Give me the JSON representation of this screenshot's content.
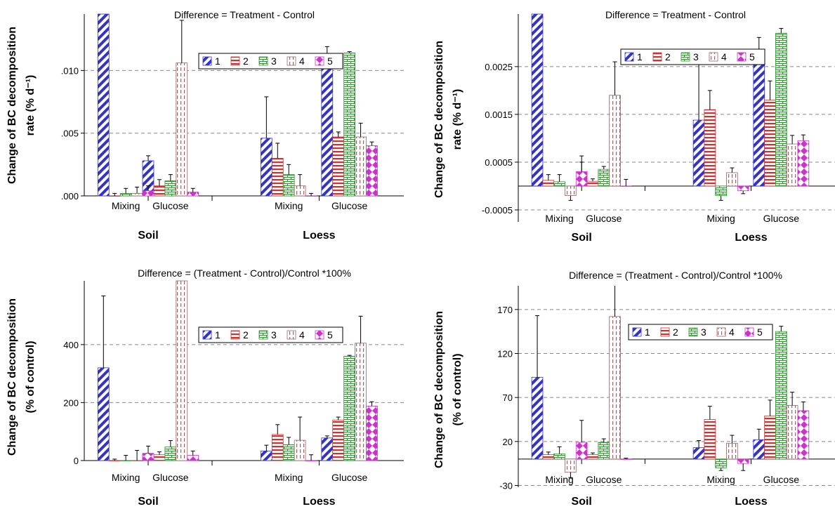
{
  "series_styles": [
    {
      "name": "1",
      "color": "#3333cc",
      "pattern": "diag"
    },
    {
      "name": "2",
      "color": "#cc3333",
      "pattern": "hlines"
    },
    {
      "name": "3",
      "color": "#339933",
      "pattern": "brick"
    },
    {
      "name": "4",
      "color": "#996666",
      "pattern": "vdash"
    },
    {
      "name": "5",
      "color": "#cc33cc",
      "pattern": "diamond"
    }
  ],
  "chart_data": [
    {
      "type": "bar",
      "title": "Difference = Treatment - Control",
      "ylabel_line1": "Change of BC decomposition",
      "ylabel_line2": "rate (% d⁻¹)",
      "ylim": [
        0,
        0.0145
      ],
      "yticks": [
        0,
        0.005,
        0.01
      ],
      "ytick_labels": [
        ".000",
        ".005",
        ".010"
      ],
      "gridlines": [
        0.005,
        0.01
      ],
      "legend_position": "top-right",
      "categories": [
        "Mixing",
        "Glucose",
        "Mixing",
        "Glucose"
      ],
      "groups": [
        "Soil",
        "Loess"
      ],
      "series": [
        {
          "name": "1",
          "values": [
            0.0145,
            0.0028,
            0.0046,
            0.0108
          ],
          "errors": [
            0.002,
            0.0004,
            0.0033,
            0.0011
          ]
        },
        {
          "name": "2",
          "values": [
            0.0,
            0.0008,
            0.003,
            0.0047
          ],
          "errors": [
            0.0002,
            0.0005,
            0.0012,
            0.0004
          ]
        },
        {
          "name": "3",
          "values": [
            0.0002,
            0.0012,
            0.0017,
            0.0114
          ],
          "errors": [
            0.0004,
            0.0005,
            0.0008,
            0.0001
          ]
        },
        {
          "name": "4",
          "values": [
            0.0002,
            0.0106,
            0.0008,
            0.0047
          ],
          "errors": [
            0.0005,
            0.0034,
            0.0009,
            0.0011
          ]
        },
        {
          "name": "5",
          "values": [
            0.0004,
            0.0003,
            0.0,
            0.004
          ],
          "errors": [
            0.0004,
            0.0003,
            0.0002,
            0.0003
          ]
        }
      ]
    },
    {
      "type": "bar",
      "title": "Difference = Treatment - Control",
      "ylabel_line1": "Change of BC decomposition",
      "ylabel_line2": "rate (% d⁻¹)",
      "ylim": [
        -0.00075,
        0.0036
      ],
      "yticks": [
        -0.0005,
        0.0005,
        0.0015,
        0.0025
      ],
      "ytick_labels": [
        "-0.0005",
        "0.0005",
        "0.0015",
        "0.0025"
      ],
      "gridlines": [
        -0.0005,
        0.0005,
        0.0015,
        0.0025
      ],
      "legend_position": "top-right",
      "categories": [
        "Mixing",
        "Glucose",
        "Mixing",
        "Glucose"
      ],
      "groups": [
        "Soil",
        "Loess"
      ],
      "series": [
        {
          "name": "1",
          "values": [
            0.0036,
            8e-05,
            0.00138,
            0.00266
          ],
          "errors": [
            0.0006,
            0.00042,
            0.00118,
            0.00045
          ]
        },
        {
          "name": "2",
          "values": [
            0.00012,
            0.0001,
            0.0016,
            0.0018
          ],
          "errors": [
            0.00012,
            5e-05,
            0.0004,
            0.0004
          ]
        },
        {
          "name": "3",
          "values": [
            9e-05,
            0.00035,
            -0.0002,
            0.0032
          ],
          "errors": [
            0.00015,
            6e-05,
            0.0001,
            0.0001
          ]
        },
        {
          "name": "4",
          "values": [
            -0.0002,
            0.0019,
            0.00028,
            0.00088
          ],
          "errors": [
            0.0001,
            0.0007,
            0.0001,
            0.00018
          ]
        },
        {
          "name": "5",
          "values": [
            0.0003,
            0.0,
            -0.0001,
            0.00095
          ],
          "errors": [
            0.00033,
            0.00014,
            6e-05,
            0.00012
          ]
        }
      ]
    },
    {
      "type": "bar",
      "title": "Difference = (Treatment - Control)/Control *100%",
      "ylabel_line1": "Change of BC decomposition",
      "ylabel_line2": "(% of control)",
      "ylim": [
        0,
        620
      ],
      "yticks": [
        0,
        200,
        400
      ],
      "ytick_labels": [
        "0",
        "200",
        "400"
      ],
      "gridlines": [
        200,
        400
      ],
      "legend_position": "top-right",
      "categories": [
        "Mixing",
        "Glucose",
        "Mixing",
        "Glucose"
      ],
      "groups": [
        "Soil",
        "Loess"
      ],
      "series": [
        {
          "name": "1",
          "values": [
            320,
            20,
            33,
            78
          ],
          "errors": [
            248,
            5,
            20,
            7
          ]
        },
        {
          "name": "2",
          "values": [
            0,
            20,
            90,
            140
          ],
          "errors": [
            5,
            10,
            34,
            10
          ]
        },
        {
          "name": "3",
          "values": [
            0,
            47,
            55,
            360
          ],
          "errors": [
            18,
            22,
            25,
            3
          ]
        },
        {
          "name": "4",
          "values": [
            0,
            620,
            70,
            405
          ],
          "errors": [
            35,
            280,
            80,
            93
          ]
        },
        {
          "name": "5",
          "values": [
            25,
            18,
            0,
            188
          ],
          "errors": [
            25,
            15,
            20,
            15
          ]
        }
      ]
    },
    {
      "type": "bar",
      "title": "Difference = (Treatment - Control)/Control *100%",
      "ylabel_line1": "Change of BC decomposition",
      "ylabel_line2": "(% of control)",
      "ylim": [
        -32,
        197
      ],
      "yticks": [
        -30,
        20,
        70,
        120,
        170
      ],
      "ytick_labels": [
        "-30",
        "20",
        "70",
        "120",
        "170"
      ],
      "gridlines": [
        -30,
        20,
        70,
        120,
        170
      ],
      "legend_position": "top-right",
      "categories": [
        "Mixing",
        "Glucose",
        "Mixing",
        "Glucose"
      ],
      "groups": [
        "Soil",
        "Loess"
      ],
      "series": [
        {
          "name": "1",
          "values": [
            93,
            2,
            13,
            22
          ],
          "errors": [
            70,
            5,
            8,
            12
          ]
        },
        {
          "name": "2",
          "values": [
            5,
            5,
            45,
            49
          ],
          "errors": [
            3,
            2,
            15,
            18
          ]
        },
        {
          "name": "3",
          "values": [
            6,
            19,
            -10,
            145
          ],
          "errors": [
            8,
            4,
            3,
            6
          ]
        },
        {
          "name": "4",
          "values": [
            -15,
            162,
            18,
            61
          ],
          "errors": [
            6,
            60,
            9,
            15
          ]
        },
        {
          "name": "5",
          "values": [
            19,
            0,
            -5,
            55
          ],
          "errors": [
            25,
            1,
            8,
            10
          ]
        }
      ]
    }
  ]
}
